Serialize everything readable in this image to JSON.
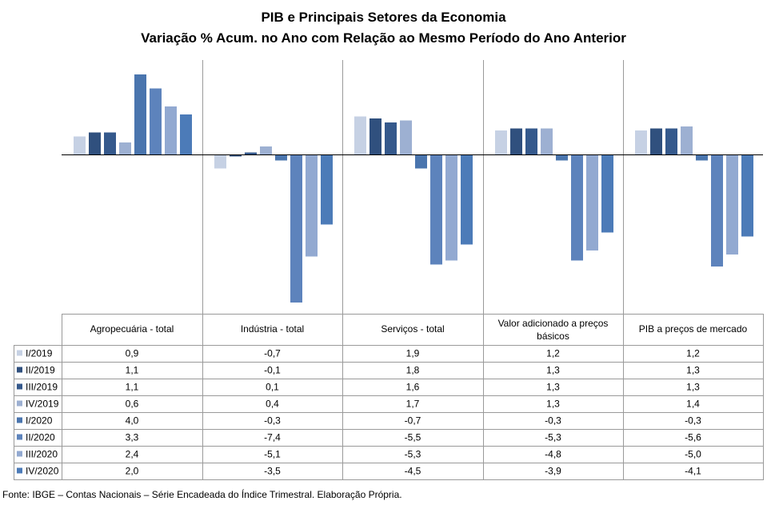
{
  "title": "PIB e Principais  Setores da Economia",
  "subtitle": "Variação % Acum. no Ano com Relação ao Mesmo Período do Ano Anterior",
  "source": "Fonte: IBGE – Contas Nacionais – Série Encadeada do Índice Trimestral. Elaboração Própria.",
  "chart_data": {
    "type": "bar",
    "title": "PIB e Principais  Setores da Economia",
    "subtitle": "Variação % Acum. no Ano com Relação ao Mesmo Período do Ano Anterior",
    "categories": [
      "Agropecuária - total",
      "Indústria - total",
      "Serviços - total",
      "Valor adicionado a preços básicos",
      "PIB a preços de mercado"
    ],
    "series": [
      {
        "name": "I/2019",
        "color": "#c6d1e4",
        "values": [
          0.9,
          -0.7,
          1.9,
          1.2,
          1.2
        ],
        "labels": [
          "0,9",
          "-0,7",
          "1,9",
          "1,2",
          "1,2"
        ]
      },
      {
        "name": "II/2019",
        "color": "#30507e",
        "values": [
          1.1,
          -0.1,
          1.8,
          1.3,
          1.3
        ],
        "labels": [
          "1,1",
          "-0,1",
          "1,8",
          "1,3",
          "1,3"
        ]
      },
      {
        "name": "III/2019",
        "color": "#35598c",
        "values": [
          1.1,
          0.1,
          1.6,
          1.3,
          1.3
        ],
        "labels": [
          "1,1",
          "0,1",
          "1,6",
          "1,3",
          "1,3"
        ]
      },
      {
        "name": "IV/2019",
        "color": "#9db0d2",
        "values": [
          0.6,
          0.4,
          1.7,
          1.3,
          1.4
        ],
        "labels": [
          "0,6",
          "0,4",
          "1,7",
          "1,3",
          "1,4"
        ]
      },
      {
        "name": "I/2020",
        "color": "#4a75ae",
        "values": [
          4.0,
          -0.3,
          -0.7,
          -0.3,
          -0.3
        ],
        "labels": [
          "4,0",
          "-0,3",
          "-0,7",
          "-0,3",
          "-0,3"
        ]
      },
      {
        "name": "II/2020",
        "color": "#5d83bc",
        "values": [
          3.3,
          -7.4,
          -5.5,
          -5.3,
          -5.6
        ],
        "labels": [
          "3,3",
          "-7,4",
          "-5,5",
          "-5,3",
          "-5,6"
        ]
      },
      {
        "name": "III/2020",
        "color": "#92a9d1",
        "values": [
          2.4,
          -5.1,
          -5.3,
          -4.8,
          -5.0
        ],
        "labels": [
          "2,4",
          "-5,1",
          "-5,3",
          "-4,8",
          "-5,0"
        ]
      },
      {
        "name": "IV/2020",
        "color": "#4c7bb8",
        "values": [
          2.0,
          -3.5,
          -4.5,
          -3.9,
          -4.1
        ],
        "labels": [
          "2,0",
          "-3,5",
          "-4,5",
          "-3,9",
          "-4,1"
        ]
      }
    ],
    "ylim": [
      -7.9,
      4.6
    ],
    "xlabel": "",
    "ylabel": "",
    "legend": "data-table",
    "grid": false
  }
}
